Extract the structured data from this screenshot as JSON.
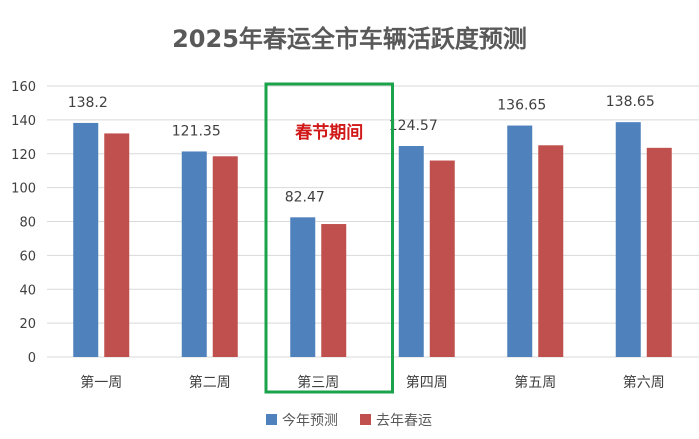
{
  "chart_data": {
    "type": "bar",
    "title": "2025年春运全市车辆活跃度预测",
    "categories": [
      "第一周",
      "第二周",
      "第三周",
      "第四周",
      "第五周",
      "第六周"
    ],
    "series": [
      {
        "name": "今年预测",
        "color": "#4f81bd",
        "values": [
          138.2,
          121.35,
          82.47,
          124.57,
          136.65,
          138.65
        ],
        "labels": [
          "138.2",
          "121.35",
          "82.47",
          "124.57",
          "136.65",
          "138.65"
        ]
      },
      {
        "name": "去年春运",
        "color": "#c0504d",
        "values": [
          132,
          118.5,
          78.5,
          116,
          125,
          123.5
        ]
      }
    ],
    "ylim": [
      0,
      160
    ],
    "yticks": [
      "0",
      "20",
      "40",
      "60",
      "80",
      "100",
      "120",
      "140",
      "160"
    ],
    "grid": true,
    "legend": "bottom",
    "annotation": {
      "text": "春节期间",
      "category": "第三周",
      "text_color": "#d01818",
      "box_color": "#1aa34a"
    }
  }
}
